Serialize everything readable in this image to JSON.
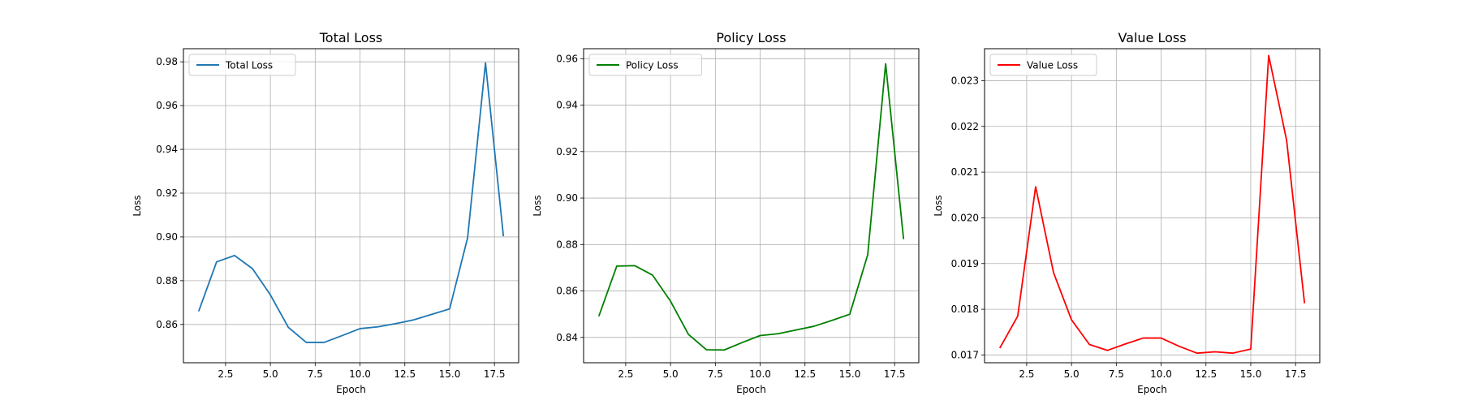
{
  "chart_data": [
    {
      "type": "line",
      "title": "Total Loss",
      "xlabel": "Epoch",
      "ylabel": "Loss",
      "xlim": [
        0.15,
        18.85
      ],
      "ylim": [
        0.8425,
        0.986
      ],
      "xticks": [
        2.5,
        5.0,
        7.5,
        10.0,
        12.5,
        15.0,
        17.5
      ],
      "xtick_labels": [
        "2.5",
        "5.0",
        "7.5",
        "10.0",
        "12.5",
        "15.0",
        "17.5"
      ],
      "yticks": [
        0.86,
        0.88,
        0.9,
        0.92,
        0.94,
        0.96,
        0.98
      ],
      "ytick_labels": [
        "0.86",
        "0.88",
        "0.90",
        "0.92",
        "0.94",
        "0.96",
        "0.98"
      ],
      "grid": true,
      "legend_position": "top-left",
      "series": [
        {
          "name": "Total Loss",
          "color": "#1f77b4",
          "x": [
            1,
            2,
            3,
            4,
            5,
            6,
            7,
            8,
            9,
            10,
            11,
            12,
            13,
            14,
            15,
            16,
            17,
            18
          ],
          "y": [
            0.866,
            0.8886,
            0.8915,
            0.8855,
            0.8735,
            0.8587,
            0.8518,
            0.8518,
            0.8549,
            0.8581,
            0.8589,
            0.8604,
            0.8621,
            0.8646,
            0.8671,
            0.8995,
            0.9795,
            0.9003
          ]
        }
      ]
    },
    {
      "type": "line",
      "title": "Policy Loss",
      "xlabel": "Epoch",
      "ylabel": "Loss",
      "xlim": [
        0.15,
        18.85
      ],
      "ylim": [
        0.8291,
        0.9643
      ],
      "xticks": [
        2.5,
        5.0,
        7.5,
        10.0,
        12.5,
        15.0,
        17.5
      ],
      "xtick_labels": [
        "2.5",
        "5.0",
        "7.5",
        "10.0",
        "12.5",
        "15.0",
        "17.5"
      ],
      "yticks": [
        0.84,
        0.86,
        0.88,
        0.9,
        0.92,
        0.94,
        0.96
      ],
      "ytick_labels": [
        "0.84",
        "0.86",
        "0.88",
        "0.90",
        "0.92",
        "0.94",
        "0.96"
      ],
      "grid": true,
      "legend_position": "top-left",
      "series": [
        {
          "name": "Policy Loss",
          "color": "#008000",
          "x": [
            1,
            2,
            3,
            4,
            5,
            6,
            7,
            8,
            9,
            10,
            11,
            12,
            13,
            14,
            15,
            16,
            17,
            18
          ],
          "y": [
            0.8491,
            0.8707,
            0.8709,
            0.8668,
            0.8556,
            0.8413,
            0.8347,
            0.8346,
            0.8378,
            0.8408,
            0.8416,
            0.8432,
            0.8448,
            0.8473,
            0.85,
            0.8756,
            0.9578,
            0.8823
          ]
        }
      ]
    },
    {
      "type": "line",
      "title": "Value Loss",
      "xlabel": "Epoch",
      "ylabel": "Loss",
      "xlim": [
        0.15,
        18.85
      ],
      "ylim": [
        0.01683,
        0.0237
      ],
      "xticks": [
        2.5,
        5.0,
        7.5,
        10.0,
        12.5,
        15.0,
        17.5
      ],
      "xtick_labels": [
        "2.5",
        "5.0",
        "7.5",
        "10.0",
        "12.5",
        "15.0",
        "17.5"
      ],
      "yticks": [
        0.017,
        0.018,
        0.019,
        0.02,
        0.021,
        0.022,
        0.023
      ],
      "ytick_labels": [
        "0.017",
        "0.018",
        "0.019",
        "0.020",
        "0.021",
        "0.022",
        "0.023"
      ],
      "grid": true,
      "legend_position": "top-left",
      "series": [
        {
          "name": "Value Loss",
          "color": "#ff0000",
          "x": [
            1,
            2,
            3,
            4,
            5,
            6,
            7,
            8,
            9,
            10,
            11,
            12,
            13,
            14,
            15,
            16,
            17,
            18
          ],
          "y": [
            0.01715,
            0.01785,
            0.02068,
            0.0188,
            0.01777,
            0.01723,
            0.0171,
            0.01724,
            0.01737,
            0.01737,
            0.01719,
            0.01704,
            0.01707,
            0.01704,
            0.01713,
            0.02355,
            0.0217,
            0.01813
          ]
        }
      ]
    }
  ]
}
